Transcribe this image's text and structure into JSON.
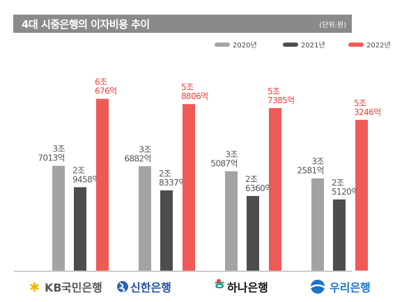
{
  "title": "4대 시중은행의 이자비용 추이",
  "unit": "(단위:원)",
  "colors": {
    "2020년": "#a3a3a3",
    "2021년": "#4d4d4d",
    "2022년": "#ee5a55",
    "title_bar": "#8a8a8a"
  },
  "chart_data": {
    "type": "bar",
    "title": "4대 시중은행의 이자비용 추이",
    "unit": "(단위:원)",
    "categories": [
      "KB국민은행",
      "신한은행",
      "하나은행",
      "우리은행"
    ],
    "value_unit": "억",
    "series": [
      {
        "name": "2020년",
        "values": [
          37013,
          36882,
          35087,
          32581
        ],
        "labels": [
          [
            "3조",
            "7013억"
          ],
          [
            "3조",
            "6882억"
          ],
          [
            "3조",
            "5087억"
          ],
          [
            "3조",
            "2581억"
          ]
        ]
      },
      {
        "name": "2021년",
        "values": [
          29458,
          28337,
          26360,
          25120
        ],
        "labels": [
          [
            "2조",
            "9458억"
          ],
          [
            "2조",
            "8337억"
          ],
          [
            "2조",
            "6360억"
          ],
          [
            "2조",
            "5120억"
          ]
        ]
      },
      {
        "name": "2022년",
        "values": [
          60676,
          58806,
          57385,
          53246
        ],
        "labels": [
          [
            "6조",
            "676억"
          ],
          [
            "5조",
            "8806억"
          ],
          [
            "5조",
            "7385억"
          ],
          [
            "5조",
            "3246억"
          ]
        ]
      }
    ],
    "legend": "top-right",
    "grid": false
  },
  "banks": [
    {
      "mark": "KB",
      "name": "국민은행",
      "color": "#555555",
      "logo_color": "#f5b800"
    },
    {
      "name": "신한은행",
      "color": "#1d4fa3"
    },
    {
      "name": "하나은행",
      "color": "#111111",
      "logo_color": "#009178"
    },
    {
      "name": "우리은행",
      "color": "#1874c6"
    }
  ]
}
